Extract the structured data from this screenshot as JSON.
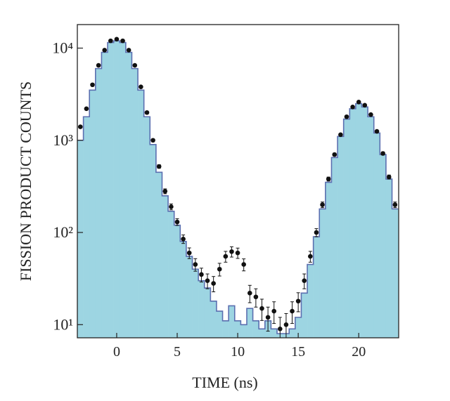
{
  "chart_data": {
    "type": "histogram",
    "xlabel": "TIME (ns)",
    "ylabel": "FISSION PRODUCT COUNTS",
    "xlim": [
      -3.25,
      23.3
    ],
    "ylim": [
      7.2,
      18000
    ],
    "log_y": true,
    "xticks": [
      0,
      5,
      10,
      15,
      20
    ],
    "yticks": [
      {
        "value": 10,
        "label": "10¹"
      },
      {
        "value": 100,
        "label": "10²"
      },
      {
        "value": 1000,
        "label": "10³"
      },
      {
        "value": 10000,
        "label": "10⁴"
      }
    ],
    "histogram": {
      "color": "#9dd5e2",
      "edge_color": "#5b6fb0",
      "bins": [
        -3.25,
        -2.75,
        -2.25,
        -1.75,
        -1.25,
        -0.75,
        -0.25,
        0.25,
        0.75,
        1.25,
        1.75,
        2.25,
        2.75,
        3.25,
        3.75,
        4.25,
        4.75,
        5.25,
        5.75,
        6.25,
        6.75,
        7.25,
        7.75,
        8.25,
        8.75,
        9.25,
        9.75,
        10.25,
        10.75,
        11.25,
        11.75,
        12.25,
        12.75,
        13.25,
        13.75,
        14.25,
        14.75,
        15.25,
        15.75,
        16.25,
        16.75,
        17.25,
        17.75,
        18.25,
        18.75,
        19.25,
        19.75,
        20.25,
        20.75,
        21.25,
        21.75,
        22.25,
        22.75,
        23.25
      ],
      "counts": [
        1000,
        1800,
        3500,
        6000,
        9000,
        11500,
        12000,
        11500,
        9000,
        6000,
        3500,
        1800,
        900,
        450,
        250,
        170,
        120,
        80,
        55,
        40,
        30,
        25,
        18,
        14,
        11,
        16,
        11,
        10,
        15,
        11,
        9,
        11,
        9,
        8,
        8,
        9,
        12,
        22,
        45,
        90,
        180,
        350,
        650,
        1100,
        1700,
        2200,
        2500,
        2300,
        1800,
        1200,
        700,
        380,
        180
      ]
    },
    "scatter": {
      "color": "#111111",
      "x": [
        -3,
        -2.5,
        -2,
        -1.5,
        -1,
        -0.5,
        0,
        0.5,
        1,
        1.5,
        2,
        2.5,
        3,
        3.5,
        4,
        4.5,
        5,
        5.5,
        6,
        6.5,
        7,
        7.5,
        8,
        8.5,
        9,
        9.5,
        10,
        10.5,
        11,
        11.5,
        12,
        12.5,
        13,
        13.5,
        14,
        14.5,
        15,
        15.5,
        16,
        16.5,
        17,
        17.5,
        18,
        18.5,
        19,
        19.5,
        20,
        20.5,
        21,
        21.5,
        22,
        22.5,
        23
      ],
      "values": [
        1400,
        2200,
        4000,
        6500,
        9500,
        12000,
        12500,
        12000,
        9500,
        6500,
        3800,
        2000,
        1000,
        520,
        280,
        190,
        130,
        85,
        60,
        45,
        35,
        30,
        28,
        40,
        55,
        62,
        60,
        45,
        22,
        20,
        15,
        12,
        14,
        9,
        10,
        14,
        18,
        30,
        55,
        100,
        200,
        380,
        700,
        1150,
        1800,
        2300,
        2600,
        2400,
        1900,
        1250,
        720,
        400,
        200
      ],
      "errors": [
        37,
        47,
        63,
        81,
        97,
        110,
        112,
        110,
        97,
        81,
        62,
        45,
        32,
        23,
        17,
        14,
        11,
        9,
        8,
        7,
        6,
        5.5,
        5.3,
        6.3,
        7.4,
        7.9,
        7.7,
        6.7,
        4.7,
        4.5,
        3.9,
        3.5,
        3.7,
        3,
        3.2,
        3.7,
        4.2,
        5.5,
        7.4,
        10,
        14,
        19,
        26,
        34,
        42,
        48,
        51,
        49,
        44,
        35,
        27,
        20,
        14
      ]
    }
  }
}
